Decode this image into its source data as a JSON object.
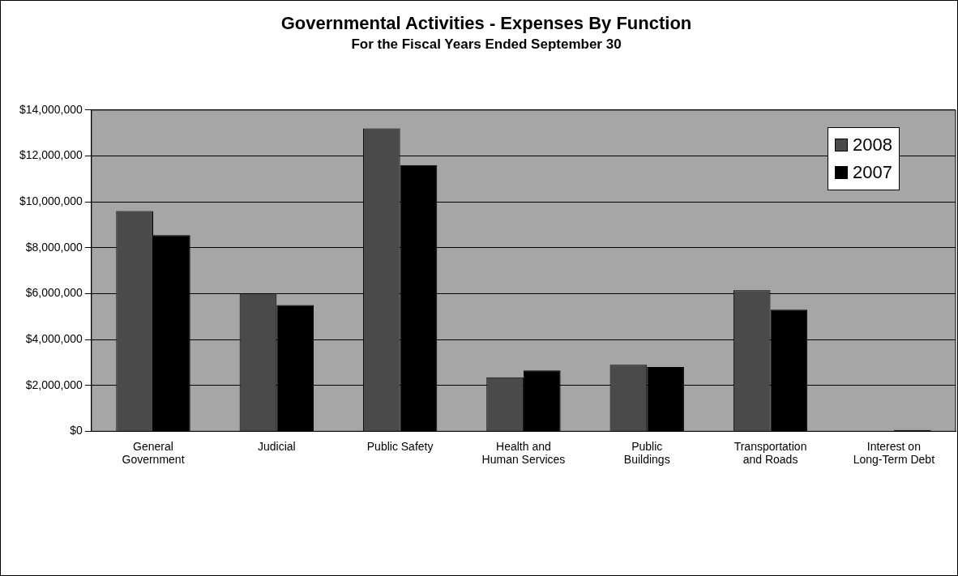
{
  "chart_data": {
    "type": "bar",
    "title": "Governmental Activities - Expenses By Function",
    "subtitle": "For the Fiscal Years Ended September 30",
    "categories": [
      "General\nGovernment",
      "Judicial",
      "Public Safety",
      "Health and\nHuman Services",
      "Public\nBuildings",
      "Transportation\nand Roads",
      "Interest on\nLong-Term Debt"
    ],
    "series": [
      {
        "name": "2008",
        "color": "#4a4a4a",
        "values": [
          9600000,
          6000000,
          13200000,
          2350000,
          2900000,
          6150000,
          null
        ]
      },
      {
        "name": "2007",
        "color": "#000000",
        "values": [
          8550000,
          5500000,
          11600000,
          2650000,
          2800000,
          5300000,
          60000
        ]
      }
    ],
    "ylim": [
      0,
      14000000
    ],
    "yticks": [
      {
        "value": 0,
        "label": "$0"
      },
      {
        "value": 2000000,
        "label": "$2,000,000"
      },
      {
        "value": 4000000,
        "label": "$4,000,000"
      },
      {
        "value": 6000000,
        "label": "$6,000,000"
      },
      {
        "value": 8000000,
        "label": "$8,000,000"
      },
      {
        "value": 10000000,
        "label": "$10,000,000"
      },
      {
        "value": 12000000,
        "label": "$12,000,000"
      },
      {
        "value": 14000000,
        "label": "$14,000,000"
      }
    ],
    "grid": "y",
    "legend": "top right"
  }
}
